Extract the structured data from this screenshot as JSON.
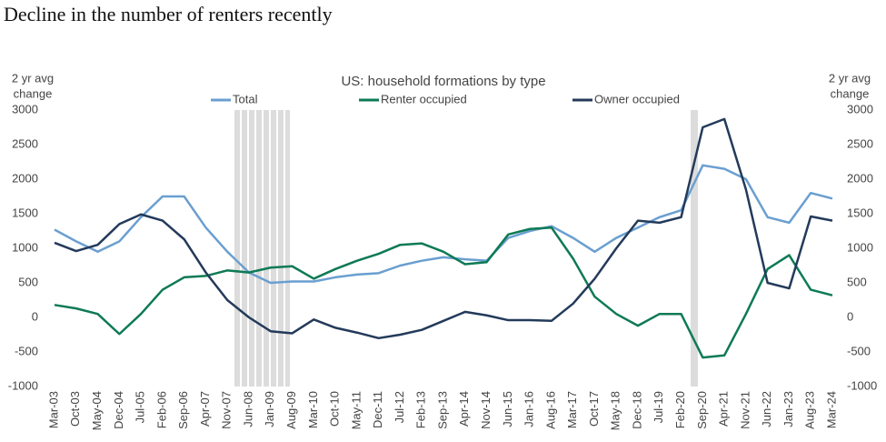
{
  "chart_data": {
    "type": "line",
    "title": "Decline in the number of renters recently",
    "subtitle": "US: household formations by type",
    "ylabel": [
      "2 yr avg",
      "change"
    ],
    "y2label": [
      "2 yr avg",
      "change"
    ],
    "categories": [
      "Mar-03",
      "Oct-03",
      "May-04",
      "Dec-04",
      "Jul-05",
      "Feb-06",
      "Sep-06",
      "Apr-07",
      "Nov-07",
      "Jun-08",
      "Jan-09",
      "Aug-09",
      "Mar-10",
      "Oct-10",
      "May-11",
      "Dec-11",
      "Jul-12",
      "Feb-13",
      "Sep-13",
      "Apr-14",
      "Nov-14",
      "Jun-15",
      "Jan-16",
      "Aug-16",
      "Mar-17",
      "Oct-17",
      "May-18",
      "Dec-18",
      "Jul-19",
      "Feb-20",
      "Sep-20",
      "Apr-21",
      "Nov-21",
      "Jun-22",
      "Jan-23",
      "Aug-23",
      "Mar-24"
    ],
    "series": [
      {
        "name": "Total",
        "color": "#6a9fd0",
        "values": [
          1270,
          1100,
          950,
          1100,
          1450,
          1750,
          1750,
          1300,
          950,
          650,
          500,
          520,
          520,
          580,
          620,
          640,
          750,
          820,
          870,
          840,
          820,
          1150,
          1250,
          1320,
          1150,
          950,
          1150,
          1300,
          1450,
          1550,
          2200,
          2150,
          2000,
          1450,
          1370,
          1800,
          1720
        ]
      },
      {
        "name": "Renter occupied",
        "color": "#0e7a55",
        "values": [
          180,
          130,
          50,
          -240,
          50,
          400,
          580,
          600,
          680,
          650,
          720,
          740,
          560,
          700,
          820,
          920,
          1050,
          1070,
          950,
          770,
          800,
          1200,
          1280,
          1300,
          850,
          300,
          50,
          -120,
          50,
          50,
          -580,
          -550,
          50,
          700,
          900,
          400,
          320
        ]
      },
      {
        "name": "Owner occupied",
        "color": "#233a5a",
        "values": [
          1080,
          960,
          1050,
          1350,
          1490,
          1400,
          1130,
          650,
          250,
          0,
          -200,
          -230,
          -30,
          -150,
          -220,
          -300,
          -250,
          -180,
          -50,
          80,
          30,
          -40,
          -40,
          -50,
          200,
          560,
          1000,
          1400,
          1370,
          1450,
          2750,
          2870,
          1850,
          500,
          420,
          1460,
          1400
        ]
      }
    ],
    "ylim": [
      -1000,
      3000
    ],
    "yticks": [
      -1000,
      -500,
      0,
      500,
      1000,
      1500,
      2000,
      2500,
      3000
    ],
    "y2lim": [
      -1000,
      3000
    ],
    "y2ticks": [
      -1000,
      -500,
      0,
      500,
      1000,
      1500,
      2000,
      2500,
      3000
    ],
    "grid": false,
    "legend": "top"
  }
}
